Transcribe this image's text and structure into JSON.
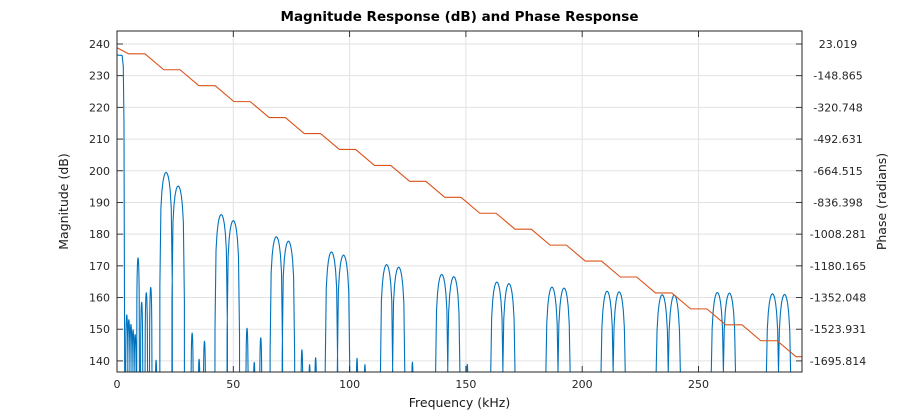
{
  "figure": {
    "background": "#ffffff"
  },
  "chart_data": {
    "type": "line",
    "title": "Magnitude Response (dB) and Phase Response",
    "xlabel": "Frequency (kHz)",
    "ylabel_left": "Magnitude (dB)",
    "ylabel_right": "Phase (radians)",
    "grid": true,
    "legend": "none",
    "xlim": [
      0,
      294.5
    ],
    "ylim_left_dB": [
      136.5,
      244.1
    ],
    "x_ticks": [
      0,
      50,
      100,
      150,
      200,
      250
    ],
    "y_ticks_left": [
      240,
      230,
      220,
      210,
      200,
      190,
      180,
      170,
      160,
      150,
      140
    ],
    "y_ticks_right": [
      "23.019",
      "-148.865",
      "-320.748",
      "-492.631",
      "-664.515",
      "-836.398",
      "-1008.281",
      "-1180.165",
      "-1352.048",
      "-1523.931",
      "-1695.814"
    ],
    "phase_axis_map": {
      "rad_at_240dB": 23.019,
      "rad_per_dB": 17.18837
    },
    "colors": {
      "magnitude": "#0072BD",
      "phase": "#D95319",
      "grid": "#E2E2E2",
      "axis": "#262626"
    },
    "series": [
      {
        "name": "Magnitude (dB)",
        "color": "#0072BD",
        "main_lobe_points_f_dB": [
          [
            0,
            236.5
          ],
          [
            2.2,
            236.4
          ],
          [
            2.7,
            233.0
          ],
          [
            3.0,
            215.0
          ],
          [
            3.3,
            136.0
          ],
          [
            3.45,
            134.0
          ]
        ],
        "lobes_center_peak_halfwidth": [
          [
            4.2,
            154.5,
            0.5
          ],
          [
            5.1,
            153.0,
            0.5
          ],
          [
            6.0,
            151.5,
            0.5
          ],
          [
            6.9,
            149.8,
            0.5
          ],
          [
            7.8,
            148.3,
            0.5
          ],
          [
            9.05,
            172.5,
            0.6
          ],
          [
            10.6,
            158.5,
            0.5
          ],
          [
            12.6,
            161.5,
            0.55
          ],
          [
            14.5,
            163.2,
            0.55
          ],
          [
            16.8,
            140.2,
            0.4
          ],
          [
            21.1,
            199.5,
            2.7
          ],
          [
            26.3,
            195.2,
            2.7
          ],
          [
            32.3,
            148.8,
            0.5
          ],
          [
            35.3,
            140.5,
            0.45
          ],
          [
            37.6,
            146.2,
            0.5
          ],
          [
            44.8,
            186.2,
            2.7
          ],
          [
            50.0,
            184.3,
            2.7
          ],
          [
            55.9,
            150.3,
            0.5
          ],
          [
            59.0,
            139.5,
            0.45
          ],
          [
            61.8,
            147.3,
            0.5
          ],
          [
            68.5,
            179.2,
            2.7
          ],
          [
            73.7,
            177.8,
            2.7
          ],
          [
            79.5,
            143.5,
            0.45
          ],
          [
            82.8,
            138.8,
            0.4
          ],
          [
            85.4,
            141.0,
            0.45
          ],
          [
            92.2,
            174.4,
            2.7
          ],
          [
            97.4,
            173.4,
            2.7
          ],
          [
            103.2,
            140.8,
            0.4
          ],
          [
            106.6,
            138.8,
            0.4
          ],
          [
            115.9,
            170.4,
            2.7
          ],
          [
            121.1,
            169.6,
            2.7
          ],
          [
            127.0,
            139.6,
            0.4
          ],
          [
            139.6,
            167.3,
            2.7
          ],
          [
            144.8,
            166.6,
            2.7
          ],
          [
            150.6,
            138.9,
            0.4
          ],
          [
            163.3,
            164.9,
            2.7
          ],
          [
            168.5,
            164.4,
            2.7
          ],
          [
            187.0,
            163.3,
            2.7
          ],
          [
            192.2,
            163.0,
            2.7
          ],
          [
            210.7,
            162.0,
            2.7
          ],
          [
            215.9,
            161.8,
            2.7
          ],
          [
            234.4,
            160.9,
            2.7
          ],
          [
            239.6,
            160.8,
            2.7
          ],
          [
            258.1,
            161.6,
            2.7
          ],
          [
            263.3,
            161.4,
            2.7
          ],
          [
            281.8,
            161.2,
            2.7
          ],
          [
            287.0,
            161.0,
            2.7
          ]
        ]
      },
      {
        "name": "Phase (radians)",
        "color": "#D95319",
        "points_f_rad": [
          [
            0,
            2.4
          ],
          [
            5,
            -30.3
          ],
          [
            12,
            -30.3
          ],
          [
            20.1,
            -116.7
          ],
          [
            27.1,
            -116.7
          ],
          [
            35.2,
            -203.2
          ],
          [
            42.2,
            -203.2
          ],
          [
            50.3,
            -289.6
          ],
          [
            57.3,
            -289.6
          ],
          [
            65.4,
            -376.1
          ],
          [
            72.4,
            -376.1
          ],
          [
            80.5,
            -462.6
          ],
          [
            87.5,
            -462.6
          ],
          [
            95.6,
            -549.0
          ],
          [
            102.6,
            -549.0
          ],
          [
            110.7,
            -635.5
          ],
          [
            117.7,
            -635.5
          ],
          [
            125.8,
            -721.9
          ],
          [
            132.8,
            -721.9
          ],
          [
            140.9,
            -808.4
          ],
          [
            147.9,
            -808.4
          ],
          [
            156.0,
            -894.9
          ],
          [
            163.0,
            -894.9
          ],
          [
            171.1,
            -981.3
          ],
          [
            178.1,
            -981.3
          ],
          [
            186.2,
            -1067.8
          ],
          [
            193.2,
            -1067.8
          ],
          [
            201.3,
            -1154.2
          ],
          [
            208.3,
            -1154.2
          ],
          [
            216.4,
            -1240.7
          ],
          [
            223.4,
            -1240.7
          ],
          [
            231.5,
            -1327.2
          ],
          [
            238.5,
            -1327.2
          ],
          [
            246.6,
            -1413.6
          ],
          [
            253.6,
            -1413.6
          ],
          [
            261.7,
            -1500.1
          ],
          [
            268.7,
            -1500.1
          ],
          [
            276.8,
            -1586.5
          ],
          [
            283.8,
            -1586.5
          ],
          [
            291.9,
            -1673.0
          ],
          [
            294.5,
            -1673.0
          ]
        ]
      }
    ]
  }
}
